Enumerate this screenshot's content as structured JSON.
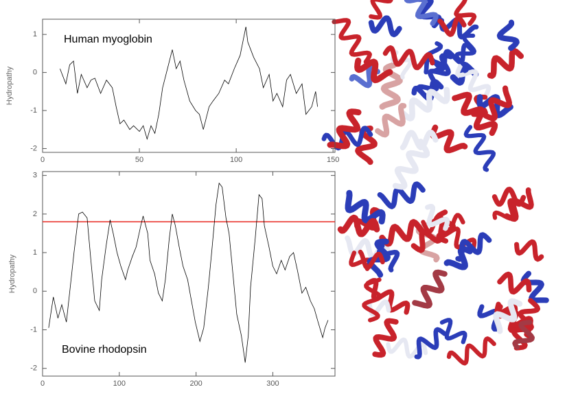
{
  "chart_data": [
    {
      "type": "line",
      "annotation": "Human myoglobin",
      "ylabel": "Hydropathy",
      "xlim": [
        0,
        151
      ],
      "xticks": [
        0,
        50,
        100,
        150
      ],
      "ylim": [
        -2.1,
        1.4
      ],
      "yticks": [
        -2,
        -1,
        0,
        1
      ],
      "x": [
        9,
        12,
        14,
        16,
        18,
        20,
        23,
        25,
        27,
        30,
        33,
        36,
        38,
        40,
        42,
        45,
        47,
        50,
        52,
        54,
        56,
        58,
        60,
        62,
        65,
        67,
        69,
        71,
        73,
        76,
        79,
        81,
        83,
        86,
        88,
        91,
        94,
        96,
        99,
        102,
        105,
        106,
        109,
        112,
        114,
        117,
        119,
        121,
        124,
        126,
        128,
        131,
        134,
        136,
        139,
        141,
        142
      ],
      "series": [
        {
          "color": "#000000",
          "values": [
            0.1,
            -0.3,
            0.2,
            0.3,
            -0.55,
            -0.05,
            -0.4,
            -0.2,
            -0.15,
            -0.55,
            -0.2,
            -0.4,
            -0.9,
            -1.35,
            -1.25,
            -1.5,
            -1.4,
            -1.55,
            -1.4,
            -1.75,
            -1.4,
            -1.6,
            -1.1,
            -0.4,
            0.2,
            0.6,
            0.1,
            0.3,
            -0.2,
            -0.75,
            -1.0,
            -1.1,
            -1.5,
            -0.9,
            -0.75,
            -0.55,
            -0.2,
            -0.3,
            0.1,
            0.45,
            1.2,
            0.8,
            0.4,
            0.1,
            -0.4,
            -0.05,
            -0.75,
            -0.55,
            -0.9,
            -0.2,
            -0.05,
            -0.55,
            -0.3,
            -1.1,
            -0.9,
            -0.5,
            -0.9
          ]
        }
      ]
    },
    {
      "type": "line",
      "annotation": "Bovine rhodopsin",
      "ylabel": "Hydropathy",
      "xlim": [
        0,
        381
      ],
      "xticks": [
        0,
        100,
        200,
        300
      ],
      "ylim": [
        -2.2,
        3.1
      ],
      "yticks": [
        -2,
        -1,
        0,
        1,
        2,
        3
      ],
      "hline": {
        "value": 1.8,
        "color": "#e8261e"
      },
      "x": [
        8,
        14,
        20,
        25,
        31,
        36,
        41,
        47,
        52,
        58,
        63,
        68,
        74,
        77,
        83,
        88,
        92,
        97,
        102,
        108,
        111,
        117,
        122,
        128,
        131,
        137,
        140,
        146,
        151,
        156,
        160,
        165,
        169,
        173,
        178,
        183,
        189,
        194,
        199,
        205,
        210,
        216,
        221,
        226,
        230,
        234,
        239,
        243,
        248,
        253,
        259,
        264,
        268,
        271,
        277,
        282,
        286,
        289,
        295,
        300,
        305,
        311,
        316,
        322,
        327,
        332,
        338,
        343,
        349,
        354,
        359,
        365,
        368,
        372
      ],
      "series": [
        {
          "color": "#000000",
          "values": [
            -0.95,
            -0.15,
            -0.7,
            -0.35,
            -0.8,
            0.1,
            1.0,
            2.0,
            2.05,
            1.9,
            0.8,
            -0.25,
            -0.5,
            0.3,
            1.2,
            1.85,
            1.5,
            1.0,
            0.65,
            0.3,
            0.55,
            0.9,
            1.15,
            1.7,
            1.95,
            1.5,
            0.8,
            0.45,
            -0.05,
            -0.25,
            0.3,
            1.35,
            2.0,
            1.7,
            1.15,
            0.65,
            0.3,
            -0.25,
            -0.8,
            -1.3,
            -0.95,
            0.1,
            1.15,
            2.25,
            2.8,
            2.7,
            1.9,
            1.5,
            0.45,
            -0.6,
            -1.15,
            -1.85,
            -1.15,
            0.1,
            1.35,
            2.5,
            2.4,
            1.7,
            1.15,
            0.65,
            0.45,
            0.8,
            0.55,
            0.9,
            1.0,
            0.55,
            -0.05,
            0.1,
            -0.25,
            -0.45,
            -0.8,
            -1.2,
            -0.95,
            -0.75
          ]
        }
      ]
    }
  ]
}
